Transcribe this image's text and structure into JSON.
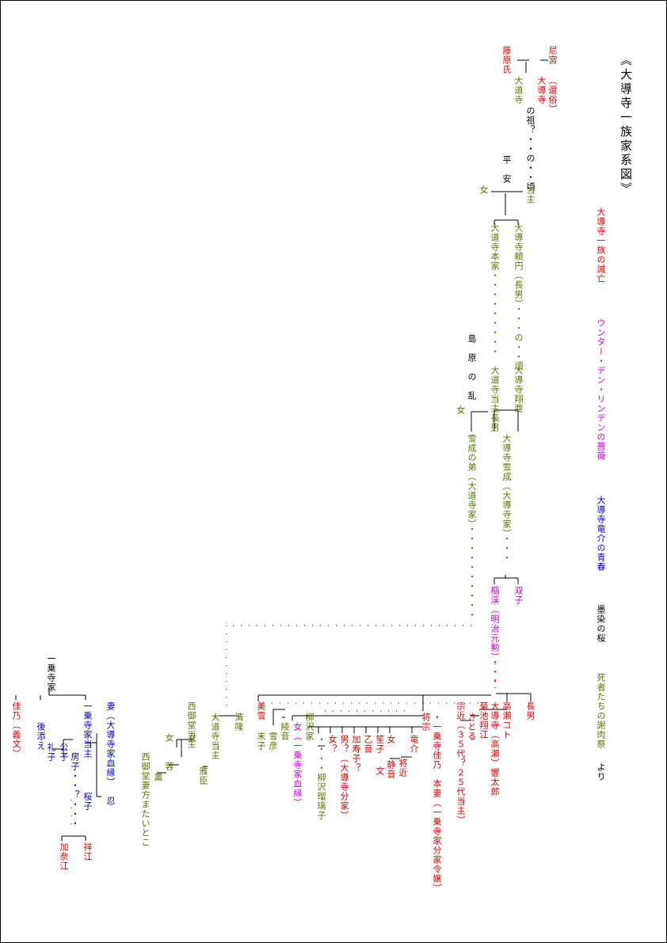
{
  "title": "《大導寺一族家系図》",
  "links": [
    {
      "label": "大導寺一族の滅亡",
      "color": "#e00000"
    },
    {
      "label": "ウンター・デン・リンデンの薔薇",
      "color": "#cc00cc"
    },
    {
      "label": "大導寺竜介の青春",
      "color": "#0000cc"
    },
    {
      "label": "墨染の桜",
      "color": "#000000"
    },
    {
      "label": "死者たちの謝肉祭",
      "color": "#557700"
    },
    {
      "label": "より",
      "color": "#000000"
    }
  ],
  "nodes": [
    {
      "id": "amamiya",
      "label": "尼宮",
      "color": "#e00000"
    },
    {
      "id": "kanzoku",
      "label": "（還俗）",
      "color": "#e00000"
    },
    {
      "id": "daidouji_top",
      "label": "大導寺",
      "color": "#e00000"
    },
    {
      "id": "fujiwara",
      "label": "藤原氏",
      "color": "#e00000"
    },
    {
      "id": "daidouji_plain",
      "label": "大道寺",
      "color": "#557700"
    },
    {
      "id": "so",
      "label": "の祖？・・の・・頃",
      "color": "#000000"
    },
    {
      "id": "heian",
      "label": "平　安",
      "color": "#000000"
    },
    {
      "id": "tousyu",
      "label": "当主",
      "color": "#557700"
    },
    {
      "id": "onna1",
      "label": "女",
      "color": "#557700"
    },
    {
      "id": "honke",
      "label": "大道寺本家・・・・・・・・・",
      "color": "#557700"
    },
    {
      "id": "raien",
      "label": "大導寺頼円（長男）・・・の・・頃",
      "color": "#557700"
    },
    {
      "id": "shimabara",
      "label": "島　原　の　乱",
      "color": "#000000"
    },
    {
      "id": "toushu_chounan",
      "label": "大道寺当主長男",
      "color": "#557700"
    },
    {
      "id": "shoua",
      "label": "大導寺翔亜",
      "color": "#557700"
    },
    {
      "id": "onna2",
      "label": "女",
      "color": "#557700"
    },
    {
      "id": "yukinari_otouto",
      "label": "雪成の弟（大道寺家）・・・・・・・・・・",
      "color": "#557700"
    },
    {
      "id": "yukinari",
      "label": "大導寺雪成（大導寺家）・・・",
      "color": "#557700"
    },
    {
      "id": "inaxi",
      "label": "稲渓（明治元勲）・・・",
      "color": "#cc00cc"
    },
    {
      "id": "futago",
      "label": "双子",
      "color": "#cc00cc"
    },
    {
      "id": "chounan",
      "label": "長男",
      "color": "#e00000"
    },
    {
      "id": "takase_koto",
      "label": "高瀬コト",
      "color": "#e00000"
    },
    {
      "id": "kyoutarou",
      "label": "大導寺（高瀬）響太郎",
      "color": "#e00000"
    },
    {
      "id": "kikuchi",
      "label": "菊池翔江",
      "color": "#e00000"
    },
    {
      "id": "satoru",
      "label": "さとる",
      "color": "#e00000"
    },
    {
      "id": "sochika",
      "label": "宗近（３５代？２５代当主）",
      "color": "#e00000"
    },
    {
      "id": "kaho",
      "label": "・一乗寺佳乃　本妻（一乗寺家分家令嬢）",
      "color": "#e00000"
    },
    {
      "id": "shoumune",
      "label": "将宗",
      "color": "#e00000"
    },
    {
      "id": "ryuusuke",
      "label": "竜介",
      "color": "#e00000"
    },
    {
      "id": "shoukon",
      "label": "将近",
      "color": "#e00000"
    },
    {
      "id": "onna_shizune",
      "label": "女",
      "color": "#e00000"
    },
    {
      "id": "shizune",
      "label": "静音",
      "color": "#e00000"
    },
    {
      "id": "sasako",
      "label": "笙子",
      "color": "#e00000"
    },
    {
      "id": "bun",
      "label": "文",
      "color": "#e00000"
    },
    {
      "id": "otone",
      "label": "乙音",
      "color": "#e00000"
    },
    {
      "id": "kazuko",
      "label": "加寿子？",
      "color": "#e00000"
    },
    {
      "id": "otoko",
      "label": "男？（大導寺分家）",
      "color": "#e00000"
    },
    {
      "id": "onnaq",
      "label": "女？",
      "color": "#e00000"
    },
    {
      "id": "yanagisawa",
      "label": "柳沢家",
      "color": "#557700"
    },
    {
      "id": "yanagisawa_ruriko",
      "label": "・・・・柳沢瑠璃子",
      "color": "#557700"
    },
    {
      "id": "onna_ichijou",
      "label": "女（一乗寺家血縁）",
      "color": "#cc00cc"
    },
    {
      "id": "ayane",
      "label": "綾音",
      "color": "#557700"
    },
    {
      "id": "yukihiko",
      "label": "雪彦",
      "color": "#557700"
    },
    {
      "id": "miyuki",
      "label": "美雪",
      "color": "#e00000"
    },
    {
      "id": "sueko",
      "label": "末子",
      "color": "#557700"
    },
    {
      "id": "kiyotaka",
      "label": "清隆",
      "color": "#557700"
    },
    {
      "id": "daidouji_toushu",
      "label": "大道寺当主",
      "color": "#557700"
    },
    {
      "id": "masaomi",
      "label": "雅臣",
      "color": "#557700"
    },
    {
      "id": "nishi_toushu",
      "label": "西御堂当主",
      "color": "#557700"
    },
    {
      "id": "onna3",
      "label": "女",
      "color": "#557700"
    },
    {
      "id": "onna4",
      "label": "女",
      "color": "#557700"
    },
    {
      "id": "kaoru",
      "label": "薫",
      "color": "#557700"
    },
    {
      "id": "jun",
      "label": "蓉",
      "color": "#557700"
    },
    {
      "id": "nishi_tsuma",
      "label": "西御堂妻方またいとこ",
      "color": "#557700"
    },
    {
      "id": "ichijou_ke",
      "label": "一乗寺家",
      "color": "#000000"
    },
    {
      "id": "kano",
      "label": "佳乃（義文）",
      "color": "#e00000"
    },
    {
      "id": "gosoe",
      "label": "後添え",
      "color": "#0000cc"
    },
    {
      "id": "reiko",
      "label": "礼子",
      "color": "#0000cc"
    },
    {
      "id": "kimiko",
      "label": "公子",
      "color": "#0000cc"
    },
    {
      "id": "fusako",
      "label": "房子・・？・・・",
      "color": "#0000cc"
    },
    {
      "id": "ichijou_toushu",
      "label": "一乗寺家当主",
      "color": "#0000cc"
    },
    {
      "id": "sakurako",
      "label": "桜子",
      "color": "#0000cc"
    },
    {
      "id": "tsuma",
      "label": "妻（大導寺家血縁）",
      "color": "#0000cc"
    },
    {
      "id": "shinobu",
      "label": "忍",
      "color": "#0000cc"
    },
    {
      "id": "kanae",
      "label": "加奈江",
      "color": "#e00000"
    },
    {
      "id": "shoukou",
      "label": "祥江",
      "color": "#e00000"
    }
  ]
}
